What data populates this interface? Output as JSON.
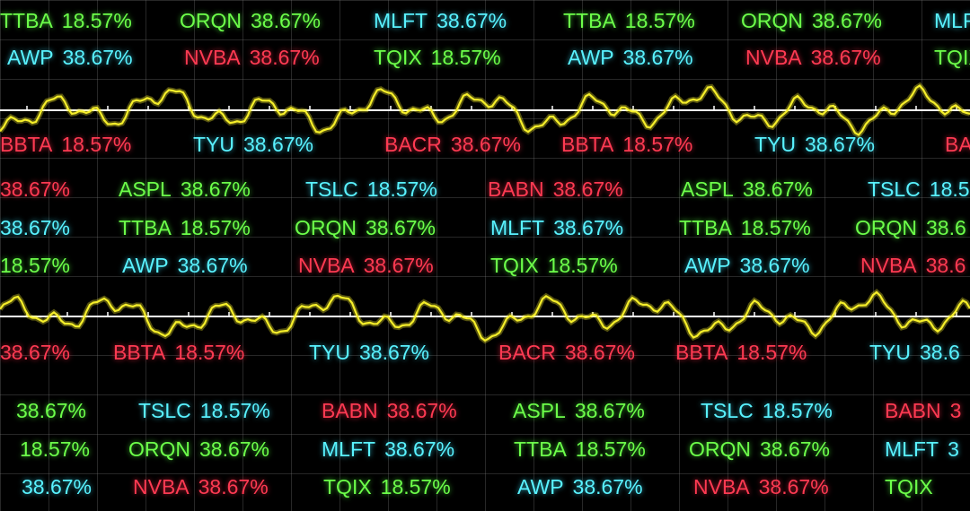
{
  "colors": {
    "green": "#6dff4a",
    "cyan": "#59f2ff",
    "red": "#ff3a52",
    "wave": "#f5ee2a",
    "baseline": "#ffffff"
  },
  "rows": [
    {
      "items": [
        {
          "sym": "TTBA",
          "pct": "18.57%",
          "color": "green"
        },
        {
          "sym": "ORQN",
          "pct": "38.67%",
          "color": "green"
        },
        {
          "sym": "MLFT",
          "pct": "38.67%",
          "color": "cyan"
        },
        {
          "sym": "TTBA",
          "pct": "18.57%",
          "color": "green"
        },
        {
          "sym": "ORQN",
          "pct": "38.67%",
          "color": "green"
        },
        {
          "sym": "MLFT",
          "pct": "",
          "color": "cyan"
        }
      ]
    },
    {
      "items": [
        {
          "sym": "AWP",
          "pct": "38.67%",
          "color": "cyan"
        },
        {
          "sym": "NVBA",
          "pct": "38.67%",
          "color": "red"
        },
        {
          "sym": "TQIX",
          "pct": "18.57%",
          "color": "green"
        },
        {
          "sym": "AWP",
          "pct": "38.67%",
          "color": "cyan"
        },
        {
          "sym": "NVBA",
          "pct": "38.67%",
          "color": "red"
        },
        {
          "sym": "TQIX",
          "pct": "",
          "color": "green"
        }
      ]
    },
    {
      "items": [
        {
          "sym": "BBTA",
          "pct": "18.57%",
          "color": "red"
        },
        {
          "sym": "TYU",
          "pct": "38.67%",
          "color": "cyan"
        },
        {
          "sym": "BACR",
          "pct": "38.67%",
          "color": "red"
        },
        {
          "sym": "BBTA",
          "pct": "18.57%",
          "color": "red"
        },
        {
          "sym": "TYU",
          "pct": "38.67%",
          "color": "cyan"
        },
        {
          "sym": "BA",
          "pct": "",
          "color": "red"
        }
      ]
    },
    {
      "items": [
        {
          "sym": "",
          "pct": "38.67%",
          "color": "red"
        },
        {
          "sym": "ASPL",
          "pct": "38.67%",
          "color": "green"
        },
        {
          "sym": "TSLC",
          "pct": "18.57%",
          "color": "cyan"
        },
        {
          "sym": "BABN",
          "pct": "38.67%",
          "color": "red"
        },
        {
          "sym": "ASPL",
          "pct": "38.67%",
          "color": "green"
        },
        {
          "sym": "TSLC",
          "pct": "18.5",
          "color": "cyan"
        }
      ]
    },
    {
      "items": [
        {
          "sym": "",
          "pct": "38.67%",
          "color": "cyan"
        },
        {
          "sym": "TTBA",
          "pct": "18.57%",
          "color": "green"
        },
        {
          "sym": "ORQN",
          "pct": "38.67%",
          "color": "green"
        },
        {
          "sym": "MLFT",
          "pct": "38.67%",
          "color": "cyan"
        },
        {
          "sym": "TTBA",
          "pct": "18.57%",
          "color": "green"
        },
        {
          "sym": "ORQN",
          "pct": "38.6",
          "color": "green"
        }
      ]
    },
    {
      "items": [
        {
          "sym": "",
          "pct": "18.57%",
          "color": "green"
        },
        {
          "sym": "AWP",
          "pct": "38.67%",
          "color": "cyan"
        },
        {
          "sym": "NVBA",
          "pct": "38.67%",
          "color": "red"
        },
        {
          "sym": "TQIX",
          "pct": "18.57%",
          "color": "green"
        },
        {
          "sym": "AWP",
          "pct": "38.67%",
          "color": "cyan"
        },
        {
          "sym": "NVBA",
          "pct": "38.6",
          "color": "red"
        }
      ]
    },
    {
      "items": [
        {
          "sym": "",
          "pct": "38.67%",
          "color": "red"
        },
        {
          "sym": "BBTA",
          "pct": "18.57%",
          "color": "red"
        },
        {
          "sym": "TYU",
          "pct": "38.67%",
          "color": "cyan"
        },
        {
          "sym": "BACR",
          "pct": "38.67%",
          "color": "red"
        },
        {
          "sym": "BBTA",
          "pct": "18.57%",
          "color": "red"
        },
        {
          "sym": "TYU",
          "pct": "38.6",
          "color": "cyan"
        }
      ]
    },
    {
      "items": [
        {
          "sym": "",
          "pct": "38.67%",
          "color": "green"
        },
        {
          "sym": "TSLC",
          "pct": "18.57%",
          "color": "cyan"
        },
        {
          "sym": "BABN",
          "pct": "38.67%",
          "color": "red"
        },
        {
          "sym": "ASPL",
          "pct": "38.67%",
          "color": "green"
        },
        {
          "sym": "TSLC",
          "pct": "18.57%",
          "color": "cyan"
        },
        {
          "sym": "BABN",
          "pct": "3",
          "color": "red"
        }
      ]
    },
    {
      "items": [
        {
          "sym": "",
          "pct": "18.57%",
          "color": "green"
        },
        {
          "sym": "ORQN",
          "pct": "38.67%",
          "color": "green"
        },
        {
          "sym": "MLFT",
          "pct": "38.67%",
          "color": "cyan"
        },
        {
          "sym": "TTBA",
          "pct": "18.57%",
          "color": "green"
        },
        {
          "sym": "ORQN",
          "pct": "38.67%",
          "color": "green"
        },
        {
          "sym": "MLFT",
          "pct": "3",
          "color": "cyan"
        }
      ]
    },
    {
      "items": [
        {
          "sym": "",
          "pct": "38.67%",
          "color": "cyan"
        },
        {
          "sym": "NVBA",
          "pct": "38.67%",
          "color": "red"
        },
        {
          "sym": "TQIX",
          "pct": "18.57%",
          "color": "green"
        },
        {
          "sym": "AWP",
          "pct": "38.67%",
          "color": "cyan"
        },
        {
          "sym": "NVBA",
          "pct": "38.67%",
          "color": "red"
        },
        {
          "sym": "TQIX",
          "pct": "",
          "color": "green"
        }
      ]
    }
  ]
}
